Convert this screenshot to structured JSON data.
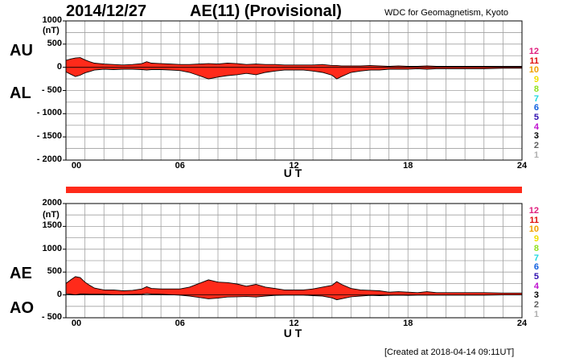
{
  "header": {
    "date": "2014/12/27",
    "title": "AE(11) (Provisional)",
    "source": "WDC for Geomagnetism, Kyoto",
    "created": "[Created at 2018-04-14 09:11UT]"
  },
  "colors": {
    "fill": "#ff2a1a",
    "grid": "#a0a0a0",
    "bar": "#ff2a1a"
  },
  "station_numbers": [
    {
      "label": "12",
      "color": "#e0207f"
    },
    {
      "label": "11",
      "color": "#e01010"
    },
    {
      "label": "10",
      "color": "#f0a000"
    },
    {
      "label": "9",
      "color": "#f0e000"
    },
    {
      "label": "8",
      "color": "#90e020"
    },
    {
      "label": "7",
      "color": "#20d8e0"
    },
    {
      "label": "6",
      "color": "#1060e0"
    },
    {
      "label": "5",
      "color": "#3010b0"
    },
    {
      "label": "4",
      "color": "#c010d0"
    },
    {
      "label": "3",
      "color": "#000000"
    },
    {
      "label": "2",
      "color": "#606060"
    },
    {
      "label": "1",
      "color": "#b0b0b0"
    }
  ],
  "chart_data": [
    {
      "type": "area",
      "panel": "top",
      "upper_label": "AU",
      "lower_label": "AL",
      "unit": "(nT)",
      "xlabel": "U T",
      "xlim": [
        0,
        24
      ],
      "ylim": [
        -2000,
        1000
      ],
      "grid": true,
      "yticks": [
        {
          "v": 1000,
          "t": "1000"
        },
        {
          "v": 500,
          "t": "500"
        },
        {
          "v": 0,
          "t": "0"
        },
        {
          "v": -500,
          "t": "- 500"
        },
        {
          "v": -1000,
          "t": "- 1000"
        },
        {
          "v": -1500,
          "t": "- 1500"
        },
        {
          "v": -2000,
          "t": "- 2000"
        }
      ],
      "xticks": [
        {
          "v": 0,
          "t": "00"
        },
        {
          "v": 6,
          "t": "06"
        },
        {
          "v": 12,
          "t": "12"
        },
        {
          "v": 18,
          "t": "18"
        },
        {
          "v": 24,
          "t": "24"
        }
      ],
      "x": [
        0,
        0.25,
        0.5,
        0.75,
        1,
        1.25,
        1.5,
        2,
        2.5,
        3,
        3.5,
        4,
        4.25,
        4.5,
        5,
        5.5,
        6,
        6.5,
        7,
        7.5,
        8,
        8.5,
        9,
        9.5,
        10,
        10.5,
        11,
        11.5,
        12,
        12.5,
        13,
        13.5,
        14,
        14.25,
        14.5,
        15,
        15.5,
        16,
        16.5,
        17,
        17.5,
        18,
        18.5,
        19,
        19.5,
        20,
        21,
        22,
        23,
        24
      ],
      "series": [
        {
          "name": "AU",
          "values": [
            150,
            180,
            200,
            210,
            160,
            120,
            90,
            70,
            60,
            50,
            60,
            80,
            120,
            90,
            80,
            70,
            60,
            60,
            70,
            80,
            70,
            90,
            80,
            60,
            70,
            60,
            60,
            50,
            50,
            50,
            50,
            60,
            40,
            40,
            30,
            30,
            30,
            40,
            30,
            20,
            30,
            20,
            20,
            30,
            20,
            20,
            20,
            20,
            20,
            20
          ]
        },
        {
          "name": "AL",
          "values": [
            -100,
            -150,
            -200,
            -170,
            -120,
            -90,
            -60,
            -40,
            -50,
            -40,
            -40,
            -50,
            -60,
            -50,
            -50,
            -60,
            -70,
            -110,
            -180,
            -250,
            -210,
            -180,
            -160,
            -130,
            -160,
            -110,
            -80,
            -60,
            -60,
            -60,
            -80,
            -110,
            -170,
            -250,
            -200,
            -110,
            -80,
            -60,
            -60,
            -40,
            -40,
            -40,
            -30,
            -40,
            -30,
            -30,
            -30,
            -30,
            -20,
            -20
          ]
        }
      ]
    },
    {
      "type": "area",
      "panel": "bottom",
      "upper_label": "AE",
      "lower_label": "AO",
      "unit": "(nT)",
      "xlabel": "U T",
      "xlim": [
        0,
        24
      ],
      "ylim": [
        -500,
        2000
      ],
      "grid": true,
      "yticks": [
        {
          "v": 2000,
          "t": "2000"
        },
        {
          "v": 1500,
          "t": "1500"
        },
        {
          "v": 1000,
          "t": "1000"
        },
        {
          "v": 500,
          "t": "500"
        },
        {
          "v": 0,
          "t": "0"
        },
        {
          "v": -500,
          "t": "- 500"
        }
      ],
      "xticks": [
        {
          "v": 0,
          "t": "00"
        },
        {
          "v": 6,
          "t": "06"
        },
        {
          "v": 12,
          "t": "12"
        },
        {
          "v": 18,
          "t": "18"
        },
        {
          "v": 24,
          "t": "24"
        }
      ],
      "x": [
        0,
        0.25,
        0.5,
        0.75,
        1,
        1.25,
        1.5,
        2,
        2.5,
        3,
        3.5,
        4,
        4.25,
        4.5,
        5,
        5.5,
        6,
        6.5,
        7,
        7.5,
        8,
        8.5,
        9,
        9.5,
        10,
        10.5,
        11,
        11.5,
        12,
        12.5,
        13,
        13.5,
        14,
        14.25,
        14.5,
        15,
        15.5,
        16,
        16.5,
        17,
        17.5,
        18,
        18.5,
        19,
        19.5,
        20,
        21,
        22,
        23,
        24
      ],
      "series": [
        {
          "name": "AE",
          "values": [
            250,
            330,
            400,
            380,
            280,
            210,
            150,
            110,
            110,
            90,
            100,
            130,
            180,
            140,
            130,
            130,
            130,
            170,
            250,
            330,
            280,
            270,
            240,
            190,
            230,
            170,
            140,
            110,
            110,
            110,
            130,
            170,
            210,
            290,
            230,
            140,
            110,
            100,
            90,
            60,
            70,
            60,
            50,
            70,
            50,
            50,
            50,
            50,
            40,
            40
          ]
        },
        {
          "name": "AO",
          "values": [
            25,
            15,
            0,
            20,
            20,
            15,
            15,
            15,
            5,
            5,
            10,
            15,
            30,
            20,
            15,
            5,
            -5,
            -25,
            -55,
            -85,
            -70,
            -45,
            -40,
            -35,
            -45,
            -25,
            -10,
            -5,
            -5,
            -5,
            -15,
            -25,
            -65,
            -105,
            -85,
            -40,
            -25,
            -10,
            -15,
            -10,
            -5,
            -10,
            -5,
            -5,
            -5,
            -5,
            -5,
            -5,
            0,
            0
          ]
        }
      ]
    }
  ]
}
